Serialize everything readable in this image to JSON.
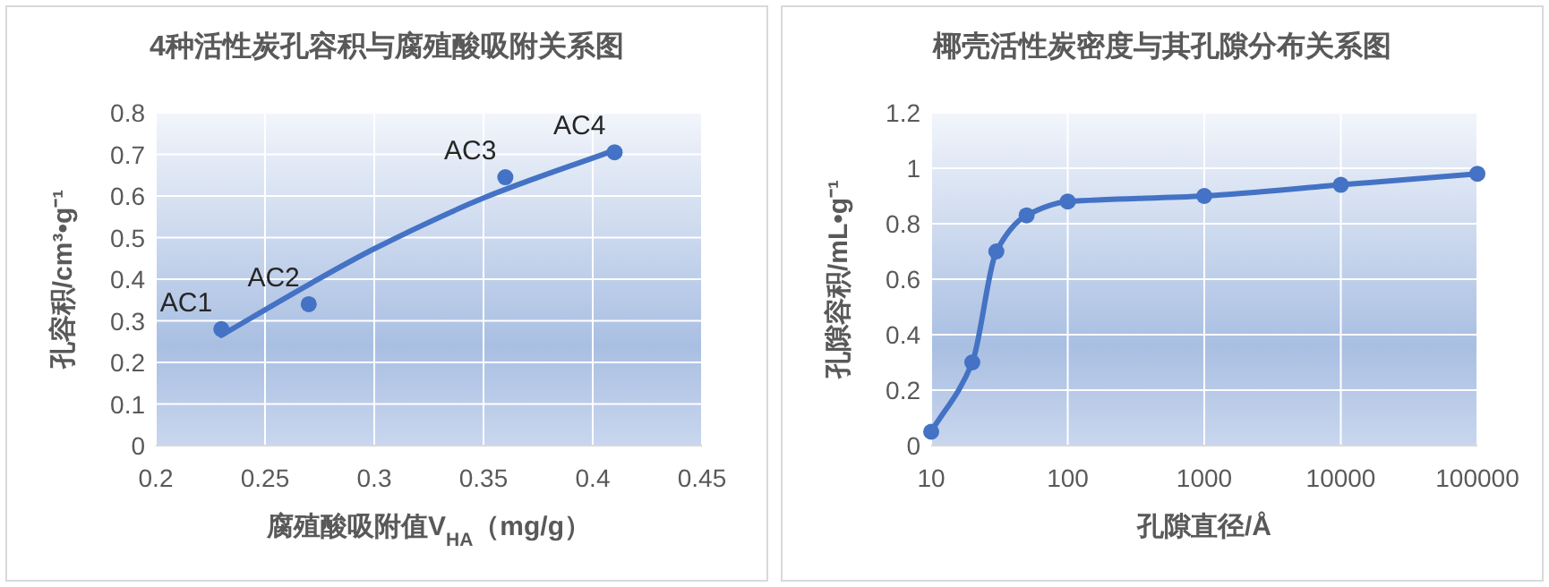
{
  "chart_data": [
    {
      "type": "scatter",
      "title": "4种活性炭孔容积与腐殖酸吸附关系图",
      "xlabel": "腐殖酸吸附值V$_{HA}$（mg/g）",
      "ylabel": "孔容积/cm³•g⁻¹",
      "x": [
        0.23,
        0.27,
        0.36,
        0.41
      ],
      "values": [
        0.28,
        0.34,
        0.645,
        0.705
      ],
      "color": "#4472c4",
      "marker": "circle",
      "series": [
        {
          "type": "line",
          "color": "#4472c4",
          "x": [
            0.23,
            0.27,
            0.3,
            0.35,
            0.41
          ],
          "values": [
            0.265,
            0.387,
            0.473,
            0.595,
            0.71
          ],
          "marker": "none"
        }
      ],
      "annotations": [
        {
          "text": "AC1",
          "x": 0.23,
          "y": 0.28
        },
        {
          "text": "AC2",
          "x": 0.27,
          "y": 0.34
        },
        {
          "text": "AC3",
          "x": 0.36,
          "y": 0.645
        },
        {
          "text": "AC4",
          "x": 0.41,
          "y": 0.705
        }
      ],
      "xlim": [
        0.2,
        0.45
      ],
      "xticks": [
        0.2,
        0.25,
        0.3,
        0.35,
        0.4,
        0.45
      ],
      "ylim": [
        0,
        0.8
      ],
      "yticks": [
        0,
        0.1,
        0.2,
        0.3,
        0.4,
        0.5,
        0.6,
        0.7,
        0.8
      ],
      "grid": true
    },
    {
      "type": "line",
      "title": "椰壳活性炭密度与其孔隙分布关系图",
      "xlabel": "孔隙直径/Å",
      "ylabel": "孔隙容积/mL•g⁻¹",
      "log": "x",
      "x": [
        10,
        20,
        30,
        50,
        100,
        1000,
        10000,
        100000
      ],
      "values": [
        0.05,
        0.3,
        0.7,
        0.83,
        0.88,
        0.9,
        0.94,
        0.98
      ],
      "color": "#4472c4",
      "marker": "circle",
      "xlim": [
        10,
        100000
      ],
      "xticks": [
        10,
        100,
        1000,
        10000,
        100000
      ],
      "ylim": [
        0,
        1.2
      ],
      "yticks": [
        0,
        0.2,
        0.4,
        0.6,
        0.8,
        1,
        1.2
      ],
      "grid": true
    }
  ]
}
